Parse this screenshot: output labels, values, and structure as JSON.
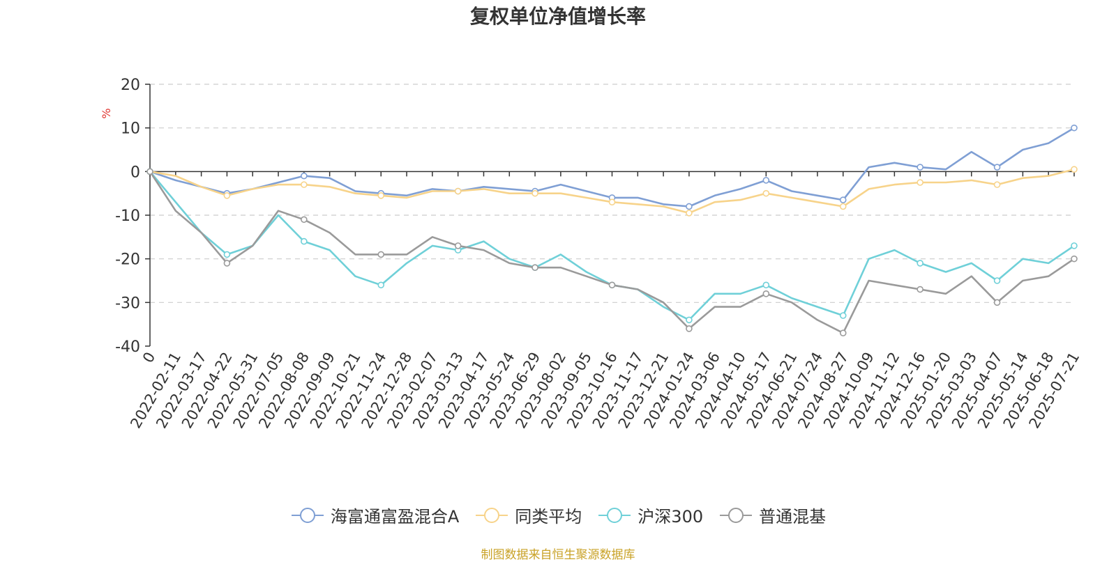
{
  "chart_data": {
    "type": "line",
    "title": "复权单位净值增长率",
    "ylabel": "%",
    "ylim": [
      -40,
      20
    ],
    "yticks": [
      20,
      10,
      0,
      -10,
      -20,
      -30,
      -40
    ],
    "x_categories": [
      "0",
      "2022-02-11",
      "2022-03-17",
      "2022-04-22",
      "2022-05-31",
      "2022-07-05",
      "2022-08-08",
      "2022-09-09",
      "2022-10-21",
      "2022-11-24",
      "2022-12-28",
      "2023-02-07",
      "2023-03-13",
      "2023-04-17",
      "2023-05-24",
      "2023-06-29",
      "2023-08-02",
      "2023-09-05",
      "2023-10-16",
      "2023-11-17",
      "2023-12-21",
      "2024-01-24",
      "2024-03-06",
      "2024-04-10",
      "2024-05-17",
      "2024-06-21",
      "2024-07-24",
      "2024-08-27",
      "2024-10-09",
      "2024-11-12",
      "2024-12-16",
      "2025-01-20",
      "2025-03-03",
      "2025-04-07",
      "2025-05-14",
      "2025-06-18",
      "2025-07-21"
    ],
    "grid": true,
    "legend_position": "bottom",
    "series": [
      {
        "name": "海富通富盈混合A",
        "color": "#7f9fd4",
        "values": [
          0,
          -2,
          -3.5,
          -5,
          -4,
          -2.5,
          -1,
          -1.5,
          -4.5,
          -5,
          -5.5,
          -4,
          -4.5,
          -3.5,
          -4,
          -4.5,
          -3,
          -4.5,
          -6,
          -6,
          -7.5,
          -8,
          -5.5,
          -4,
          -2,
          -4.5,
          -5.5,
          -6.5,
          1,
          2,
          1,
          0.5,
          4.5,
          1,
          5,
          6.5,
          10
        ]
      },
      {
        "name": "同类平均",
        "color": "#f7d38a",
        "values": [
          0,
          -1,
          -3.5,
          -5.5,
          -4,
          -3,
          -3,
          -3.5,
          -5,
          -5.5,
          -6,
          -4.5,
          -4.5,
          -4,
          -5,
          -5,
          -5,
          -6,
          -7,
          -7.5,
          -8,
          -9.5,
          -7,
          -6.5,
          -5,
          -6,
          -7,
          -8,
          -4,
          -3,
          -2.5,
          -2.5,
          -2,
          -3,
          -1.5,
          -1,
          0.5
        ]
      },
      {
        "name": "沪深300",
        "color": "#6fd0d8",
        "values": [
          0,
          -7,
          -14,
          -19,
          -17,
          -10,
          -16,
          -18,
          -24,
          -26,
          -21,
          -17,
          -18,
          -16,
          -20,
          -22,
          -19,
          -23,
          -26,
          -27,
          -31,
          -34,
          -28,
          -28,
          -26,
          -29,
          -31,
          -33,
          -20,
          -18,
          -21,
          -23,
          -21,
          -25,
          -20,
          -21,
          -17
        ]
      },
      {
        "name": "普通混基",
        "color": "#9a9a9a",
        "values": [
          0,
          -9,
          -14,
          -21,
          -17,
          -9,
          -11,
          -14,
          -19,
          -19,
          -19,
          -15,
          -17,
          -18,
          -21,
          -22,
          -22,
          -24,
          -26,
          -27,
          -30,
          -36,
          -31,
          -31,
          -28,
          -30,
          -34,
          -37,
          -25,
          -26,
          -27,
          -28,
          -24,
          -30,
          -25,
          -24,
          -20
        ]
      }
    ]
  },
  "footer": {
    "source": "制图数据来自恒生聚源数据库"
  }
}
